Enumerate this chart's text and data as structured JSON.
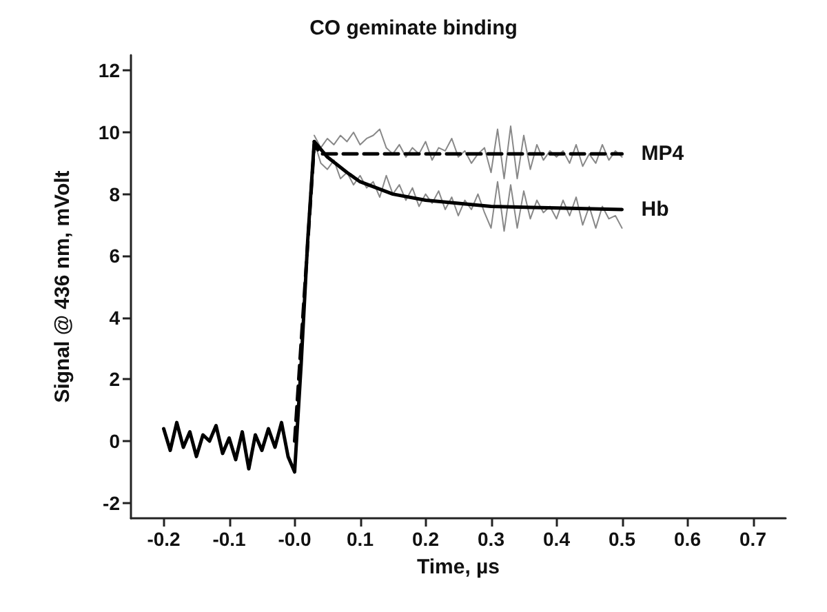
{
  "chart_data": {
    "type": "line",
    "title": "CO geminate binding",
    "xlabel": "Time, µs",
    "ylabel": "Signal @ 436 nm, mVolt",
    "xlim": [
      -0.25,
      0.75
    ],
    "xticks": [
      -0.2,
      -0.1,
      {
        "value": 0,
        "label": "-0.0"
      },
      0.1,
      0.2,
      0.3,
      0.4,
      0.5,
      0.6,
      0.7
    ],
    "ylim": [
      -2.5,
      12.5
    ],
    "yticks": [
      -2,
      0,
      2,
      4,
      6,
      8,
      10,
      12
    ],
    "grid": false,
    "legend": false,
    "marker": "none",
    "series": [
      {
        "color": "#888888",
        "line_style": "solid",
        "x": [
          0.03,
          0.04,
          0.05,
          0.06,
          0.07,
          0.08,
          0.09,
          0.1,
          0.11,
          0.12,
          0.13,
          0.14,
          0.15,
          0.16,
          0.17,
          0.18,
          0.19,
          0.2,
          0.21,
          0.22,
          0.23,
          0.24,
          0.25,
          0.26,
          0.27,
          0.28,
          0.29,
          0.3,
          0.31,
          0.32,
          0.33,
          0.34,
          0.35,
          0.36,
          0.37,
          0.38,
          0.39,
          0.4,
          0.41,
          0.42,
          0.43,
          0.44,
          0.45,
          0.46,
          0.47,
          0.48,
          0.49,
          0.5
        ],
        "values": [
          9.9,
          9.5,
          9.8,
          9.6,
          9.9,
          9.7,
          10.0,
          9.6,
          9.8,
          9.9,
          10.1,
          9.5,
          9.3,
          9.6,
          9.2,
          9.5,
          9.3,
          9.7,
          9.1,
          9.5,
          9.4,
          9.8,
          9.2,
          9.4,
          9.0,
          9.3,
          9.5,
          8.7,
          10.1,
          8.5,
          10.2,
          8.5,
          9.9,
          8.8,
          9.6,
          9.1,
          9.4,
          9.2,
          9.4,
          9.0,
          9.6,
          8.9,
          9.3,
          9.0,
          9.6,
          9.1,
          9.4,
          9.2
        ]
      },
      {
        "color": "#888888",
        "line_style": "solid",
        "x": [
          0.03,
          0.04,
          0.05,
          0.06,
          0.07,
          0.08,
          0.09,
          0.1,
          0.11,
          0.12,
          0.13,
          0.14,
          0.15,
          0.16,
          0.17,
          0.18,
          0.19,
          0.2,
          0.21,
          0.22,
          0.23,
          0.24,
          0.25,
          0.26,
          0.27,
          0.28,
          0.29,
          0.3,
          0.31,
          0.32,
          0.33,
          0.34,
          0.35,
          0.36,
          0.37,
          0.38,
          0.39,
          0.4,
          0.41,
          0.42,
          0.43,
          0.44,
          0.45,
          0.46,
          0.47,
          0.48,
          0.49,
          0.5
        ],
        "values": [
          9.7,
          9.0,
          8.8,
          9.1,
          8.5,
          8.7,
          8.3,
          8.6,
          8.2,
          8.4,
          7.9,
          8.6,
          8.0,
          8.3,
          7.8,
          8.2,
          7.6,
          8.0,
          7.7,
          8.1,
          7.5,
          7.9,
          7.3,
          7.8,
          7.5,
          8.0,
          7.4,
          6.9,
          8.4,
          6.8,
          8.3,
          6.9,
          8.1,
          7.2,
          7.8,
          7.4,
          7.6,
          7.2,
          7.8,
          7.3,
          7.9,
          7.0,
          7.6,
          6.9,
          7.6,
          7.2,
          7.3,
          6.9
        ]
      },
      {
        "color": "#000000",
        "line_style": "solid",
        "x": [
          -0.2,
          -0.19,
          -0.18,
          -0.17,
          -0.16,
          -0.15,
          -0.14,
          -0.13,
          -0.12,
          -0.11,
          -0.1,
          -0.09,
          -0.08,
          -0.07,
          -0.06,
          -0.05,
          -0.04,
          -0.03,
          -0.02,
          -0.01,
          0.0,
          0.01,
          0.02,
          0.03
        ],
        "values": [
          0.4,
          -0.3,
          0.6,
          -0.2,
          0.3,
          -0.5,
          0.2,
          0.0,
          0.5,
          -0.4,
          0.1,
          -0.6,
          0.3,
          -0.9,
          0.2,
          -0.3,
          0.4,
          -0.2,
          0.6,
          -0.5,
          -1.0,
          2.5,
          6.5,
          9.7
        ]
      },
      {
        "name": "MP4",
        "color": "#000000",
        "line_style": "dashed",
        "x": [
          0.0,
          0.03,
          0.04,
          0.5
        ],
        "values": [
          0,
          9.6,
          9.3,
          9.3
        ]
      },
      {
        "name": "Hb",
        "color": "#000000",
        "line_style": "solid",
        "x": [
          0.03,
          0.05,
          0.08,
          0.1,
          0.15,
          0.2,
          0.25,
          0.3,
          0.4,
          0.5
        ],
        "values": [
          9.7,
          9.2,
          8.7,
          8.4,
          8.0,
          7.8,
          7.7,
          7.6,
          7.55,
          7.5
        ]
      }
    ]
  }
}
